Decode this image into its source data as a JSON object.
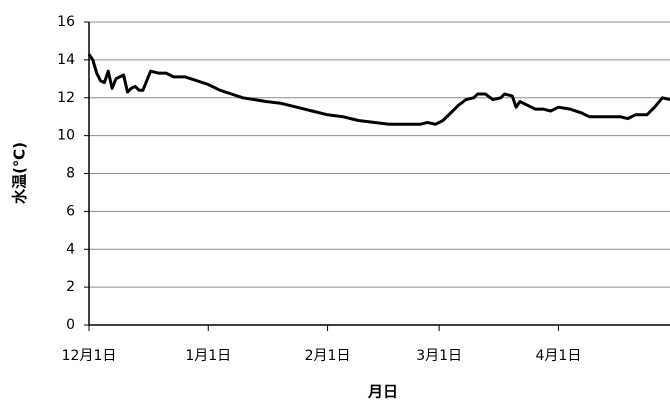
{
  "chart_data": {
    "type": "line",
    "y_label": "水温(℃)",
    "x_label": "月日",
    "x": [
      0,
      1,
      2,
      3,
      4,
      5,
      6,
      7,
      8,
      9,
      10,
      11,
      12,
      13,
      14,
      16,
      18,
      20,
      22,
      25,
      28,
      31,
      34,
      37,
      40,
      43,
      46,
      50,
      54,
      58,
      62,
      66,
      70,
      74,
      78,
      82,
      86,
      88,
      90,
      92,
      94,
      96,
      98,
      100,
      101,
      103,
      105,
      107,
      108,
      110,
      111,
      112,
      114,
      116,
      118,
      120,
      122,
      125,
      128,
      130,
      134,
      138,
      140,
      142,
      145,
      147,
      149,
      151
    ],
    "series": [
      {
        "name": "水温",
        "color": "#000000",
        "values": [
          14.3,
          14.0,
          13.3,
          12.9,
          12.8,
          13.4,
          12.5,
          13.0,
          13.1,
          13.2,
          12.3,
          12.5,
          12.6,
          12.4,
          12.4,
          13.4,
          13.3,
          13.3,
          13.1,
          13.1,
          12.9,
          12.7,
          12.4,
          12.2,
          12.0,
          11.9,
          11.8,
          11.7,
          11.5,
          11.3,
          11.1,
          11.0,
          10.8,
          10.7,
          10.6,
          10.6,
          10.6,
          10.7,
          10.6,
          10.8,
          11.2,
          11.6,
          11.9,
          12.0,
          12.2,
          12.2,
          11.9,
          12.0,
          12.2,
          12.1,
          11.5,
          11.8,
          11.6,
          11.4,
          11.4,
          11.3,
          11.5,
          11.4,
          11.2,
          11.0,
          11.0,
          11.0,
          10.9,
          11.1,
          11.1,
          11.5,
          12.0,
          11.9
        ]
      }
    ],
    "xlim": [
      0,
      151
    ],
    "xticks": [
      {
        "value": 0,
        "label": "12月1日"
      },
      {
        "value": 31,
        "label": "1月1日"
      },
      {
        "value": 62,
        "label": "2月1日"
      },
      {
        "value": 91,
        "label": "3月1日"
      },
      {
        "value": 122,
        "label": "4月1日"
      }
    ],
    "ylim": [
      0,
      16
    ],
    "yticks": [
      0,
      2,
      4,
      6,
      8,
      10,
      12,
      14,
      16
    ],
    "grid": true
  }
}
